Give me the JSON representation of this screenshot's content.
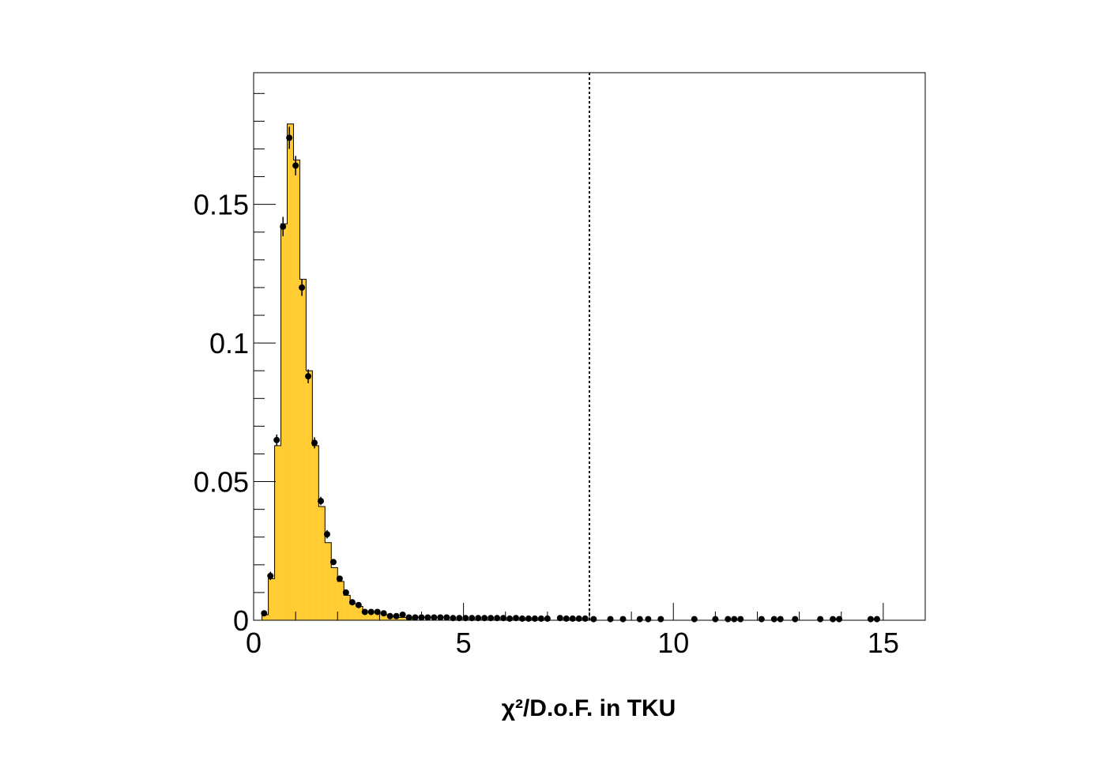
{
  "chart_data": {
    "type": "bar",
    "xlabel": "χ²/D.o.F. in TKU",
    "xlim": [
      0,
      16
    ],
    "ylim": [
      0,
      0.1975
    ],
    "x_ticks": [
      0,
      5,
      10,
      15
    ],
    "x_tick_labels": [
      "0",
      "5",
      "10",
      "15"
    ],
    "y_ticks": [
      0,
      0.05,
      0.1,
      0.15
    ],
    "y_tick_labels": [
      "0",
      "0.05",
      "0.1",
      "0.15"
    ],
    "cut_line_x": 8.0,
    "legend": "none",
    "grid": false,
    "colors": {
      "histogram_fill": "#ffcc33",
      "histogram_line": "#000000",
      "points": "#000000",
      "cut_line": "#000000"
    },
    "series": [
      {
        "kind": "histogram",
        "bin_edges": [
          0.2,
          0.35,
          0.5,
          0.65,
          0.8,
          0.95,
          1.1,
          1.25,
          1.4,
          1.55,
          1.7,
          1.85,
          2.0,
          2.15,
          2.3,
          2.45,
          2.6,
          2.75,
          2.9,
          3.05,
          3.2,
          3.35,
          3.5,
          3.65,
          3.8
        ],
        "values": [
          0.002,
          0.015,
          0.063,
          0.143,
          0.179,
          0.166,
          0.123,
          0.09,
          0.063,
          0.041,
          0.028,
          0.019,
          0.014,
          0.009,
          0.006,
          0.005,
          0.003,
          0.003,
          0.0025,
          0.002,
          0.0015,
          0.001,
          0.001,
          0.0005
        ]
      },
      {
        "kind": "points",
        "x": [
          0.25,
          0.4,
          0.55,
          0.7,
          0.85,
          1.0,
          1.15,
          1.3,
          1.45,
          1.6,
          1.75,
          1.9,
          2.05,
          2.2,
          2.35,
          2.5,
          2.65,
          2.8,
          2.95,
          3.1,
          3.25,
          3.4,
          3.55,
          3.7,
          3.85,
          4.0,
          4.15,
          4.3,
          4.45,
          4.6,
          4.75,
          4.9,
          5.05,
          5.2,
          5.35,
          5.5,
          5.65,
          5.8,
          5.95,
          6.1,
          6.25,
          6.4,
          6.55,
          6.7,
          6.85,
          7.0,
          7.3,
          7.45,
          7.6,
          7.75,
          7.9,
          8.1,
          8.5,
          8.8,
          9.2,
          9.4,
          9.7,
          10.5,
          11.0,
          11.3,
          11.45,
          11.6,
          12.1,
          12.4,
          12.55,
          12.9,
          13.5,
          13.8,
          13.95,
          14.7,
          14.85
        ],
        "y": [
          0.0025,
          0.016,
          0.065,
          0.142,
          0.174,
          0.164,
          0.12,
          0.088,
          0.064,
          0.043,
          0.031,
          0.021,
          0.015,
          0.01,
          0.0065,
          0.0055,
          0.003,
          0.003,
          0.003,
          0.0025,
          0.0015,
          0.0015,
          0.002,
          0.001,
          0.001,
          0.001,
          0.001,
          0.001,
          0.001,
          0.001,
          0.0008,
          0.0008,
          0.0008,
          0.0008,
          0.0008,
          0.0008,
          0.0008,
          0.0008,
          0.0008,
          0.0006,
          0.0008,
          0.0006,
          0.0006,
          0.0006,
          0.0006,
          0.0006,
          0.0008,
          0.0006,
          0.0006,
          0.0006,
          0.0006,
          0.0004,
          0.0004,
          0.0004,
          0.0004,
          0.0004,
          0.0004,
          0.0004,
          0.0004,
          0.0004,
          0.0004,
          0.0004,
          0.0004,
          0.0004,
          0.0004,
          0.0004,
          0.0004,
          0.0004,
          0.0004,
          0.0004,
          0.0004
        ],
        "y_err": [
          0.001,
          0.0015,
          0.002,
          0.0035,
          0.004,
          0.0035,
          0.003,
          0.0025,
          0.002,
          0.0015,
          0.0015,
          0.001,
          0.001,
          0.001,
          0.0008,
          0.0008,
          0.0006,
          0.0006,
          0.0006,
          0.0005,
          0.0005,
          0.0005,
          0.0005,
          0.0004,
          0.0004,
          0.0004,
          0.0004,
          0.0004,
          0.0004,
          0.0004,
          0.0003,
          0.0003,
          0.0003,
          0.0003,
          0.0003,
          0.0003,
          0.0003,
          0.0003,
          0.0003,
          0.0003,
          0.0003,
          0.0003,
          0.0003,
          0.0003,
          0.0003,
          0.0003,
          0.0003,
          0.0003,
          0.0003,
          0.0003,
          0.0003,
          0.0003,
          0.0003,
          0.0003,
          0.0003,
          0.0003,
          0.0003,
          0.0003,
          0.0003,
          0.0003,
          0.0003,
          0.0003,
          0.0003,
          0.0003,
          0.0003,
          0.0003,
          0.0003,
          0.0003,
          0.0003,
          0.0003,
          0.0003
        ]
      }
    ]
  }
}
